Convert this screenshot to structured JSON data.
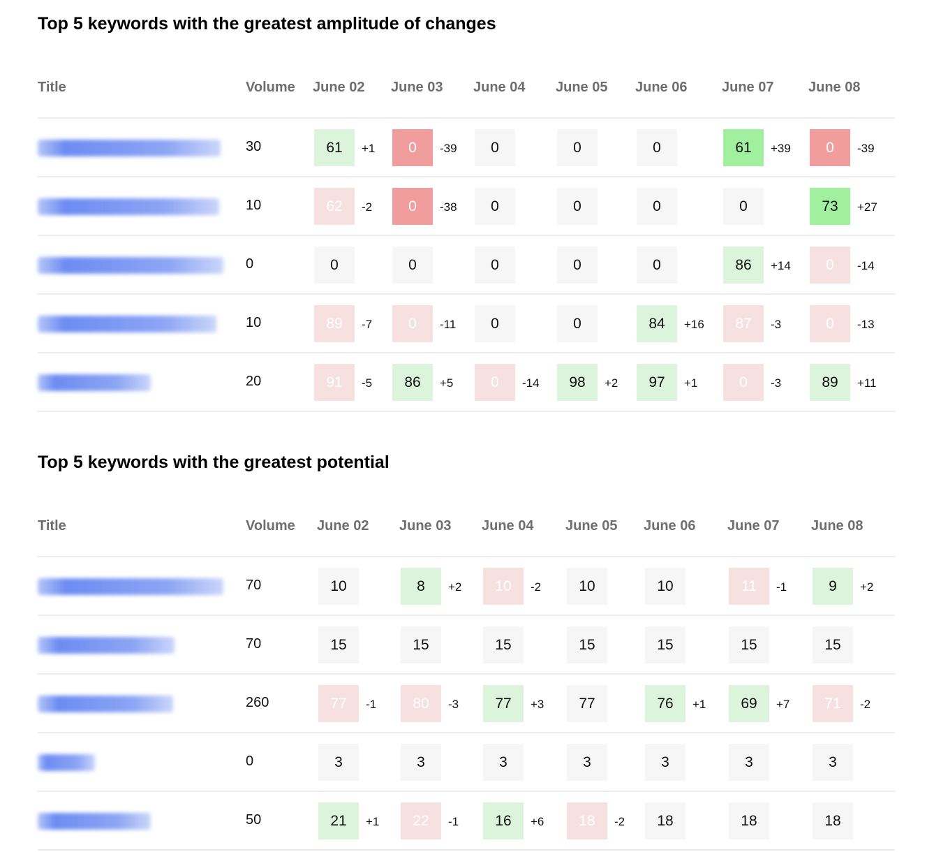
{
  "colors": {
    "neutral_cell": "#f6f6f6",
    "positive_light": "#dbf4db",
    "positive_strong": "#a0f0a0",
    "negative_light": "#f6e0e0",
    "negative_strong": "#f19d9d",
    "keyword_link": "#2e5beb",
    "header_text": "#6e6e6e"
  },
  "sections": [
    {
      "title": "Top 5 keywords with the greatest amplitude of changes",
      "columns": [
        "Title",
        "Volume",
        "June 02",
        "June 03",
        "June 04",
        "June 05",
        "June 06",
        "June 07",
        "June 08"
      ],
      "rows": [
        {
          "keyword": "обучение по подбору пе...",
          "volume": "30",
          "cells": [
            {
              "v": "61",
              "d": "+1",
              "t": "g"
            },
            {
              "v": "0",
              "d": "-39",
              "t": "R"
            },
            {
              "v": "0",
              "d": "",
              "t": "n"
            },
            {
              "v": "0",
              "d": "",
              "t": "n"
            },
            {
              "v": "0",
              "d": "",
              "t": "n"
            },
            {
              "v": "61",
              "d": "+39",
              "t": "G"
            },
            {
              "v": "0",
              "d": "-39",
              "t": "R"
            }
          ]
        },
        {
          "keyword": "тендер менеджер обуче...",
          "volume": "10",
          "cells": [
            {
              "v": "62",
              "d": "-2",
              "t": "r"
            },
            {
              "v": "0",
              "d": "-38",
              "t": "R"
            },
            {
              "v": "0",
              "d": "",
              "t": "n"
            },
            {
              "v": "0",
              "d": "",
              "t": "n"
            },
            {
              "v": "0",
              "d": "",
              "t": "n"
            },
            {
              "v": "0",
              "d": "",
              "t": "n"
            },
            {
              "v": "73",
              "d": "+27",
              "t": "G"
            }
          ]
        },
        {
          "keyword": "курсы для hr специалист...",
          "volume": "0",
          "cells": [
            {
              "v": "0",
              "d": "",
              "t": "n"
            },
            {
              "v": "0",
              "d": "",
              "t": "n"
            },
            {
              "v": "0",
              "d": "",
              "t": "n"
            },
            {
              "v": "0",
              "d": "",
              "t": "n"
            },
            {
              "v": "0",
              "d": "",
              "t": "n"
            },
            {
              "v": "86",
              "d": "+14",
              "t": "g"
            },
            {
              "v": "0",
              "d": "-14",
              "t": "r"
            }
          ]
        },
        {
          "keyword": "обучение технике продаж",
          "volume": "10",
          "cells": [
            {
              "v": "89",
              "d": "-7",
              "t": "r"
            },
            {
              "v": "0",
              "d": "-11",
              "t": "r"
            },
            {
              "v": "0",
              "d": "",
              "t": "n"
            },
            {
              "v": "0",
              "d": "",
              "t": "n"
            },
            {
              "v": "84",
              "d": "+16",
              "t": "g"
            },
            {
              "v": "87",
              "d": "-3",
              "t": "r"
            },
            {
              "v": "0",
              "d": "-13",
              "t": "r"
            }
          ]
        },
        {
          "keyword": "обучение для hr",
          "volume": "20",
          "cells": [
            {
              "v": "91",
              "d": "-5",
              "t": "r"
            },
            {
              "v": "86",
              "d": "+5",
              "t": "g"
            },
            {
              "v": "0",
              "d": "-14",
              "t": "r"
            },
            {
              "v": "98",
              "d": "+2",
              "t": "g"
            },
            {
              "v": "97",
              "d": "+1",
              "t": "g"
            },
            {
              "v": "0",
              "d": "-3",
              "t": "r"
            },
            {
              "v": "89",
              "d": "+11",
              "t": "g"
            }
          ]
        }
      ]
    },
    {
      "title": "Top 5 keywords with the greatest potential",
      "columns": [
        "Title",
        "Volume",
        "June 02",
        "June 03",
        "June 04",
        "June 05",
        "June 06",
        "June 07",
        "June 08"
      ],
      "rows": [
        {
          "keyword": "курсы деловых перегово...",
          "volume": "70",
          "cells": [
            {
              "v": "10",
              "d": "",
              "t": "n"
            },
            {
              "v": "8",
              "d": "+2",
              "t": "g"
            },
            {
              "v": "10",
              "d": "-2",
              "t": "r"
            },
            {
              "v": "10",
              "d": "",
              "t": "n"
            },
            {
              "v": "10",
              "d": "",
              "t": "n"
            },
            {
              "v": "11",
              "d": "-1",
              "t": "r"
            },
            {
              "v": "9",
              "d": "+2",
              "t": "g"
            }
          ]
        },
        {
          "keyword": "онлайн обучение hr",
          "volume": "70",
          "cells": [
            {
              "v": "15",
              "d": "",
              "t": "n"
            },
            {
              "v": "15",
              "d": "",
              "t": "n"
            },
            {
              "v": "15",
              "d": "",
              "t": "n"
            },
            {
              "v": "15",
              "d": "",
              "t": "n"
            },
            {
              "v": "15",
              "d": "",
              "t": "n"
            },
            {
              "v": "15",
              "d": "",
              "t": "n"
            },
            {
              "v": "15",
              "d": "",
              "t": "n"
            }
          ]
        },
        {
          "keyword": "курсы по продажам",
          "volume": "260",
          "cells": [
            {
              "v": "77",
              "d": "-1",
              "t": "r"
            },
            {
              "v": "80",
              "d": "-3",
              "t": "r"
            },
            {
              "v": "77",
              "d": "+3",
              "t": "g"
            },
            {
              "v": "77",
              "d": "",
              "t": "n"
            },
            {
              "v": "76",
              "d": "+1",
              "t": "g"
            },
            {
              "v": "69",
              "d": "+7",
              "t": "g"
            },
            {
              "v": "71",
              "d": "-2",
              "t": "r"
            }
          ]
        },
        {
          "keyword": "курсы hr",
          "volume": "0",
          "cells": [
            {
              "v": "3",
              "d": "",
              "t": "n"
            },
            {
              "v": "3",
              "d": "",
              "t": "n"
            },
            {
              "v": "3",
              "d": "",
              "t": "n"
            },
            {
              "v": "3",
              "d": "",
              "t": "n"
            },
            {
              "v": "3",
              "d": "",
              "t": "n"
            },
            {
              "v": "3",
              "d": "",
              "t": "n"
            },
            {
              "v": "3",
              "d": "",
              "t": "n"
            }
          ]
        },
        {
          "keyword": "курсы hr онлайн",
          "volume": "50",
          "cells": [
            {
              "v": "21",
              "d": "+1",
              "t": "g"
            },
            {
              "v": "22",
              "d": "-1",
              "t": "r"
            },
            {
              "v": "16",
              "d": "+6",
              "t": "g"
            },
            {
              "v": "18",
              "d": "-2",
              "t": "r"
            },
            {
              "v": "18",
              "d": "",
              "t": "n"
            },
            {
              "v": "18",
              "d": "",
              "t": "n"
            },
            {
              "v": "18",
              "d": "",
              "t": "n"
            }
          ]
        }
      ]
    }
  ]
}
